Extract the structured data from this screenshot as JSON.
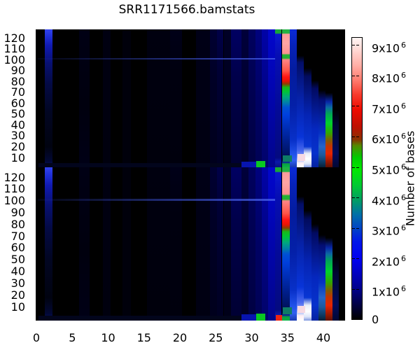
{
  "chart_data": {
    "type": "heatmap",
    "title": "SRR1171566.bamstats",
    "xlabel": "",
    "ylabel": "",
    "x_ticks": [
      0,
      5,
      10,
      15,
      20,
      25,
      30,
      35,
      40
    ],
    "y_ticks": [
      120,
      110,
      100,
      90,
      80,
      70,
      60,
      50,
      40,
      30,
      20,
      10
    ],
    "x_range": [
      0,
      43
    ],
    "panel_count": 2,
    "panel_description": "two stacked read panels sharing the same quality-vs-cycle heat pattern",
    "colorbar": {
      "label": "Number of bases",
      "ticks": [
        {
          "v": 9,
          "base": "9x10",
          "sup": "6"
        },
        {
          "v": 8,
          "base": "8x10",
          "sup": "6"
        },
        {
          "v": 7,
          "base": "7x10",
          "sup": "6"
        },
        {
          "v": 6,
          "base": "6x10",
          "sup": "6"
        },
        {
          "v": 5,
          "base": "5x10",
          "sup": "6"
        },
        {
          "v": 4,
          "base": "4x10",
          "sup": "6"
        },
        {
          "v": 3,
          "base": "3x10",
          "sup": "6"
        },
        {
          "v": 2,
          "base": "2x10",
          "sup": "6"
        },
        {
          "v": 1,
          "base": "1x10",
          "sup": "6"
        },
        {
          "v": 0,
          "base": "0",
          "sup": ""
        }
      ],
      "max_value": 9400000,
      "colormap": [
        [
          0.0,
          "#000000"
        ],
        [
          0.106,
          "#00008a"
        ],
        [
          0.213,
          "#0000f0"
        ],
        [
          0.277,
          "#0018e8"
        ],
        [
          0.319,
          "#0040c8"
        ],
        [
          0.372,
          "#0070a8"
        ],
        [
          0.426,
          "#00a060"
        ],
        [
          0.479,
          "#00cc30"
        ],
        [
          0.532,
          "#00e800"
        ],
        [
          0.574,
          "#00cc00"
        ],
        [
          0.617,
          "#558800"
        ],
        [
          0.638,
          "#883300"
        ],
        [
          0.681,
          "#bb1100"
        ],
        [
          0.745,
          "#ee0b00"
        ],
        [
          0.798,
          "#f73b2d"
        ],
        [
          0.851,
          "#ff7d70"
        ],
        [
          0.904,
          "#ffb0a8"
        ],
        [
          0.957,
          "#ffd8d4"
        ],
        [
          1.0,
          "#fff6f4"
        ]
      ]
    },
    "heat_columns": [
      {
        "q": [
          1.2,
          2.2
        ],
        "stops": [
          [
            0,
            "#3344ee"
          ],
          [
            0.05,
            "#2030d8"
          ],
          [
            0.12,
            "#101ab0"
          ],
          [
            0.25,
            "#081070"
          ],
          [
            0.4,
            "#040a44"
          ],
          [
            0.6,
            "#020622"
          ],
          [
            0.85,
            "#010310"
          ],
          [
            0.95,
            "#020833"
          ],
          [
            1,
            "#051060"
          ]
        ]
      },
      {
        "q": [
          5.9,
          7.4
        ],
        "stops": [
          [
            0,
            "#000014"
          ],
          [
            0.55,
            "#00000e"
          ],
          [
            1,
            "#000016"
          ]
        ]
      },
      {
        "q": [
          9.3,
          10.3
        ],
        "stops": [
          [
            0,
            "#000011"
          ],
          [
            1,
            "#00000e"
          ]
        ]
      },
      {
        "q": [
          12,
          13.2
        ],
        "stops": [
          [
            0,
            "#00000b"
          ],
          [
            1,
            "#00000b"
          ]
        ]
      },
      {
        "q": [
          15.4,
          18.6
        ],
        "stops": [
          [
            0,
            "#00000f"
          ],
          [
            1,
            "#00000c"
          ]
        ]
      },
      {
        "q": [
          18.6,
          20.3
        ],
        "stops": [
          [
            0,
            "#000018"
          ],
          [
            0.3,
            "#00000f"
          ],
          [
            1,
            "#00000d"
          ]
        ]
      },
      {
        "q": [
          22.2,
          24.2
        ],
        "stops": [
          [
            0,
            "#000016"
          ],
          [
            1,
            "#000011"
          ]
        ]
      },
      {
        "q": [
          24.2,
          25.2
        ],
        "stops": [
          [
            0,
            "#000032"
          ],
          [
            0.35,
            "#000026"
          ],
          [
            1,
            "#00001c"
          ]
        ]
      },
      {
        "q": [
          25.2,
          26.1
        ],
        "stops": [
          [
            0,
            "#000048"
          ],
          [
            0.3,
            "#000034"
          ],
          [
            1,
            "#000022"
          ]
        ]
      },
      {
        "q": [
          26.1,
          27.1
        ],
        "stops": [
          [
            0,
            "#000026"
          ],
          [
            1,
            "#000018"
          ]
        ]
      },
      {
        "q": [
          27.1,
          28.6
        ],
        "stops": [
          [
            0,
            "#000062"
          ],
          [
            0.35,
            "#00004a"
          ],
          [
            1,
            "#000032"
          ]
        ]
      },
      {
        "q": [
          28.6,
          29.6
        ],
        "stops": [
          [
            0,
            "#00003a"
          ],
          [
            1,
            "#000026"
          ]
        ]
      },
      {
        "q": [
          29.6,
          30.5
        ],
        "stops": [
          [
            0,
            "#00015e"
          ],
          [
            1,
            "#000142"
          ]
        ]
      },
      {
        "q": [
          30.5,
          31.4
        ],
        "stops": [
          [
            0,
            "#00027e"
          ],
          [
            0.5,
            "#000264"
          ],
          [
            1,
            "#000254"
          ]
        ]
      },
      {
        "q": [
          31.4,
          32.3
        ],
        "stops": [
          [
            0,
            "#0103a8"
          ],
          [
            0.5,
            "#010384"
          ],
          [
            1,
            "#01036a"
          ]
        ]
      },
      {
        "q": [
          32.3,
          33.3
        ],
        "stops": [
          [
            0,
            "#0206cc"
          ],
          [
            0.5,
            "#0205ac"
          ],
          [
            1,
            "#02058c"
          ]
        ]
      },
      {
        "q": [
          33.3,
          34.2
        ],
        "stops": [
          [
            0,
            "#18a838"
          ],
          [
            0.028,
            "#18a838"
          ],
          [
            0.034,
            "#0a16d0"
          ],
          [
            0.2,
            "#060eb2"
          ],
          [
            0.6,
            "#040a96"
          ],
          [
            0.93,
            "#040a80"
          ],
          [
            0.96,
            "#0a18aa"
          ],
          [
            1,
            "#061280"
          ]
        ]
      },
      {
        "q": [
          34.2,
          35.3
        ],
        "stops": [
          [
            0,
            "#22b244"
          ],
          [
            0.028,
            "#22b244"
          ],
          [
            0.034,
            "#ff9b9b"
          ],
          [
            0.1,
            "#ffa4a4"
          ],
          [
            0.175,
            "#ff9292"
          ],
          [
            0.185,
            "#22b233"
          ],
          [
            0.208,
            "#22b233"
          ],
          [
            0.22,
            "#ff8585"
          ],
          [
            0.3,
            "#ff5548"
          ],
          [
            0.345,
            "#ff1412"
          ],
          [
            0.375,
            "#e81405"
          ],
          [
            0.395,
            "#903c00"
          ],
          [
            0.42,
            "#18b818"
          ],
          [
            0.45,
            "#00c434"
          ],
          [
            0.49,
            "#00a87c"
          ],
          [
            0.53,
            "#0080a8"
          ],
          [
            0.565,
            "#0052d4"
          ],
          [
            0.62,
            "#0040dd"
          ],
          [
            0.7,
            "#0030bb"
          ],
          [
            0.8,
            "#002090"
          ],
          [
            0.9,
            "#001464"
          ],
          [
            0.945,
            "#000d48"
          ],
          [
            0.965,
            "#0b2a9a"
          ],
          [
            0.975,
            "#0ba040"
          ],
          [
            1,
            "#0bb648"
          ]
        ]
      },
      {
        "q": [
          35.3,
          36.3
        ],
        "stops": [
          [
            0,
            "#0a2ad8"
          ],
          [
            0.12,
            "#0622b8"
          ],
          [
            0.3,
            "#041c9e"
          ],
          [
            0.55,
            "#0420a8"
          ],
          [
            0.8,
            "#0830c8"
          ],
          [
            0.9,
            "#2050e8"
          ],
          [
            0.95,
            "#3060f0"
          ],
          [
            1,
            "#1838b0"
          ]
        ]
      },
      {
        "q": [
          36.3,
          37.3
        ],
        "stops": [
          [
            0,
            "#000000"
          ],
          [
            0.19,
            "#000000"
          ],
          [
            0.24,
            "#030e68"
          ],
          [
            0.5,
            "#0622a8"
          ],
          [
            0.78,
            "#0834d8"
          ],
          [
            0.88,
            "#4868ee"
          ],
          [
            0.92,
            "#8095f8"
          ],
          [
            0.955,
            "#c8d2fa"
          ],
          [
            0.968,
            "#fdeef4"
          ],
          [
            1,
            "#ffffff"
          ]
        ]
      },
      {
        "q": [
          37.3,
          38.3
        ],
        "stops": [
          [
            0,
            "#000000"
          ],
          [
            0.28,
            "#000000"
          ],
          [
            0.34,
            "#020b5e"
          ],
          [
            0.62,
            "#0524b4"
          ],
          [
            0.85,
            "#0836d4"
          ],
          [
            0.9,
            "#e8eef8"
          ],
          [
            0.94,
            "#ffffff"
          ],
          [
            0.975,
            "#dce4f8"
          ],
          [
            1,
            "#8098e0"
          ]
        ]
      },
      {
        "q": [
          38.3,
          39.3
        ],
        "stops": [
          [
            0,
            "#000000"
          ],
          [
            0.37,
            "#000000"
          ],
          [
            0.43,
            "#020a62"
          ],
          [
            0.72,
            "#0527be"
          ],
          [
            0.9,
            "#0632cc"
          ],
          [
            1,
            "#0422a0"
          ]
        ]
      },
      {
        "q": [
          39.3,
          40.3
        ],
        "stops": [
          [
            0,
            "#000000"
          ],
          [
            0.44,
            "#000000"
          ],
          [
            0.51,
            "#030e74"
          ],
          [
            0.75,
            "#0530c4"
          ],
          [
            0.85,
            "#2464c8"
          ],
          [
            0.91,
            "#1c5a9e"
          ],
          [
            0.96,
            "#0e3c68"
          ],
          [
            1,
            "#072038"
          ]
        ]
      },
      {
        "q": [
          40.3,
          41.3
        ],
        "stops": [
          [
            0,
            "#000000"
          ],
          [
            0.46,
            "#000000"
          ],
          [
            0.525,
            "#0826a8"
          ],
          [
            0.565,
            "#0c68a4"
          ],
          [
            0.61,
            "#00a458"
          ],
          [
            0.68,
            "#00d22c"
          ],
          [
            0.75,
            "#30a800"
          ],
          [
            0.8,
            "#7e6200"
          ],
          [
            0.845,
            "#c23600"
          ],
          [
            0.9,
            "#e82400"
          ],
          [
            0.95,
            "#a61a00"
          ],
          [
            1,
            "#601000"
          ]
        ]
      },
      {
        "q": [
          41.3,
          42.2
        ],
        "stops": [
          [
            0,
            "#000000"
          ],
          [
            0.58,
            "#000000"
          ],
          [
            0.7,
            "#010636"
          ],
          [
            0.9,
            "#020b58"
          ],
          [
            1,
            "#010734"
          ]
        ]
      }
    ],
    "heat_rows": [
      {
        "q": [
          0.15,
          33.3
        ],
        "f": [
          0.206,
          0.219
        ],
        "from": "rgba(20,30,120,0.15)",
        "to": "rgba(70,95,235,0.8)"
      }
    ],
    "heat_cells": [
      {
        "q": [
          0.3,
          28.6
        ],
        "f": [
          0.97,
          1
        ],
        "c": "#02051c",
        "p": [
          0,
          1
        ]
      },
      {
        "q": [
          28.6,
          30.6
        ],
        "f": [
          0.958,
          1
        ],
        "c": "#0714b0",
        "p": [
          0,
          1
        ]
      },
      {
        "q": [
          30.6,
          31.9
        ],
        "f": [
          0.955,
          1
        ],
        "c": "#09c822",
        "p": [
          0,
          1
        ]
      },
      {
        "q": [
          33.4,
          34.25
        ],
        "f": [
          0.962,
          1
        ],
        "c": "#ee2414",
        "p": [
          1
        ]
      },
      {
        "q": [
          34.3,
          35.65
        ],
        "f": [
          0.912,
          0.958
        ],
        "c": "#0e7c66",
        "p": [
          0,
          1
        ]
      },
      {
        "q": [
          36.35,
          37.45
        ],
        "f": [
          0.905,
          0.952
        ],
        "c": "#f6d9e2",
        "p": [
          0,
          1
        ]
      }
    ]
  }
}
